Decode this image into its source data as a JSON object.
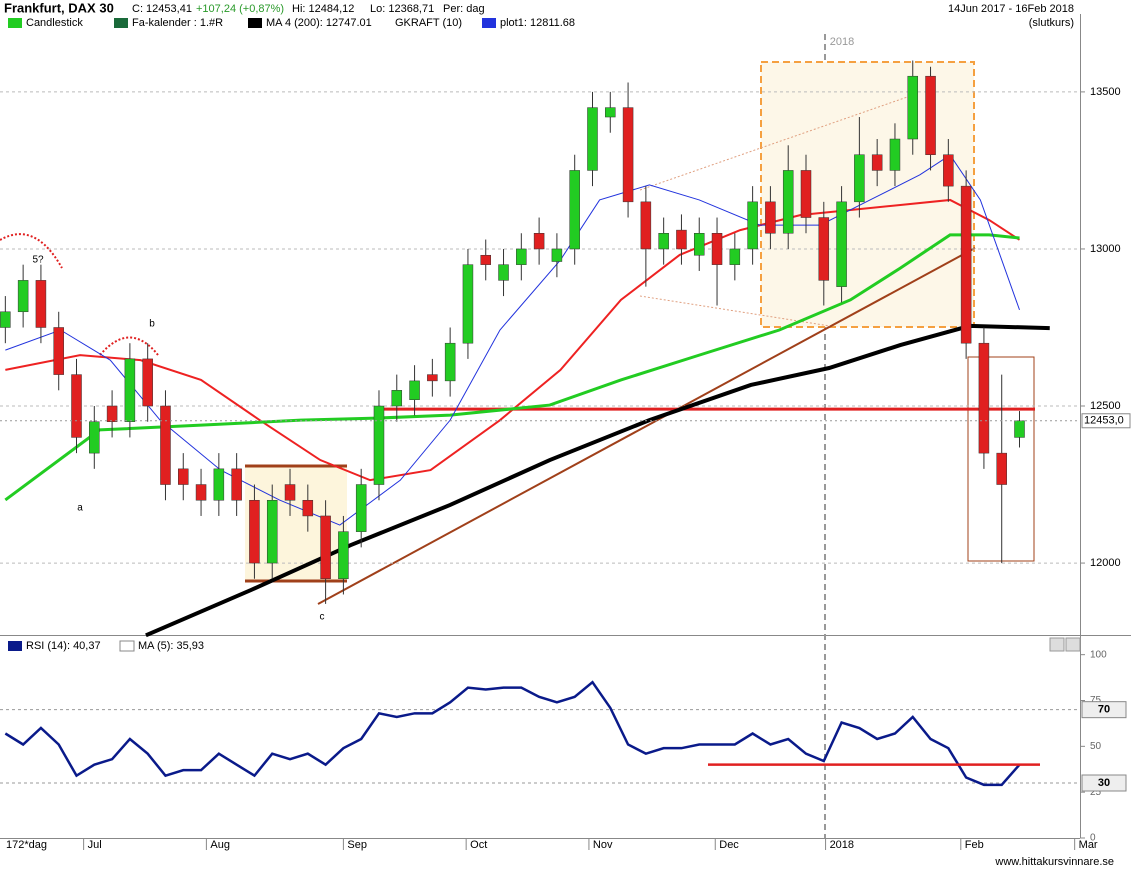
{
  "header": {
    "title": "Frankfurt, DAX 30",
    "close": "C: 12453,41",
    "change": "+107,24 (+0,87%)",
    "high": "Hi: 12484,12",
    "low": "Lo: 12368,71",
    "period": "Per: dag",
    "range": "14Jun 2017 - 16Feb 2018",
    "mode": "(slutkurs)",
    "footer": "www.hittakursvinnare.se",
    "span": "172*dag"
  },
  "chart_data": [
    {
      "type": "candlestick",
      "legend": [
        "Candlestick",
        "Fa-kalender : 1.#R",
        "MA 4 (200): 12747.01",
        "GKRAFT (10)",
        "plot1: 12811.68"
      ],
      "up_color": "#22cc22",
      "down_color": "#e02020",
      "open": [
        12750,
        12800,
        12900,
        12750,
        12600,
        12350,
        12500,
        12450,
        12650,
        12500,
        12300,
        12250,
        12200,
        12300,
        12200,
        12000,
        12250,
        12200,
        12150,
        11950,
        12100,
        12250,
        12500,
        12520,
        12600,
        12580,
        12700,
        12980,
        12900,
        12950,
        13050,
        12960,
        13000,
        13250,
        13420,
        13450,
        13150,
        13000,
        13060,
        12980,
        13050,
        12950,
        13000,
        13150,
        13050,
        13250,
        13100,
        12880,
        13150,
        13300,
        13250,
        13350,
        13550,
        13300,
        13200,
        12700,
        12350,
        12400
      ],
      "high": [
        12850,
        12950,
        12950,
        12800,
        12650,
        12500,
        12550,
        12700,
        12700,
        12550,
        12350,
        12300,
        12350,
        12350,
        12250,
        12250,
        12300,
        12250,
        12200,
        12150,
        12300,
        12550,
        12600,
        12630,
        12650,
        12750,
        13000,
        13030,
        13000,
        13050,
        13100,
        13050,
        13300,
        13500,
        13500,
        13530,
        13200,
        13100,
        13110,
        13100,
        13100,
        13050,
        13200,
        13200,
        13330,
        13300,
        13150,
        13200,
        13420,
        13350,
        13400,
        13600,
        13580,
        13350,
        13250,
        12750,
        12600,
        12484
      ],
      "low": [
        12700,
        12750,
        12700,
        12550,
        12350,
        12300,
        12400,
        12400,
        12450,
        12200,
        12200,
        12150,
        12150,
        12150,
        11950,
        11950,
        12150,
        12100,
        11870,
        11900,
        12050,
        12200,
        12450,
        12470,
        12530,
        12530,
        12650,
        12900,
        12850,
        12900,
        12950,
        12910,
        12950,
        13200,
        13370,
        13100,
        12880,
        12950,
        12950,
        12930,
        12820,
        12900,
        12950,
        13000,
        13000,
        13050,
        12820,
        12830,
        13100,
        13200,
        13200,
        13300,
        13250,
        13150,
        12650,
        12300,
        12000,
        12368
      ],
      "close": [
        12800,
        12900,
        12750,
        12600,
        12400,
        12450,
        12450,
        12650,
        12500,
        12250,
        12250,
        12200,
        12300,
        12200,
        12000,
        12200,
        12200,
        12150,
        11950,
        12100,
        12250,
        12500,
        12550,
        12580,
        12580,
        12700,
        12950,
        12950,
        12950,
        13000,
        13000,
        13000,
        13250,
        13450,
        13450,
        13150,
        13000,
        13050,
        13000,
        13050,
        12950,
        13000,
        13150,
        13050,
        13250,
        13100,
        12900,
        13150,
        13300,
        13250,
        13350,
        13550,
        13300,
        13200,
        12700,
        12350,
        12250,
        12453
      ],
      "lines": [
        {
          "name": "MA 4 (200)",
          "color": "#000000",
          "width": 4,
          "x": [
            7.9,
            13.8,
            19.4,
            25,
            30.6,
            36.2,
            41.9,
            46.3,
            50.3,
            54.2,
            58.7
          ],
          "values": [
            11770,
            11914,
            12057,
            12185,
            12328,
            12455,
            12567,
            12621,
            12694,
            12755,
            12748
          ]
        },
        {
          "name": "red",
          "color": "#ee2222",
          "width": 2,
          "x": [
            0,
            4.2,
            7.6,
            11,
            14.3,
            17.7,
            20.5,
            23.9,
            27.8,
            31.2,
            34.6,
            37.9,
            41.3,
            44.7,
            47.5,
            50.3,
            53.1,
            55.3,
            57
          ],
          "values": [
            12615,
            12662,
            12646,
            12583,
            12455,
            12328,
            12264,
            12296,
            12455,
            12615,
            12838,
            12981,
            13060,
            13108,
            13124,
            13140,
            13156,
            13092,
            13029
          ]
        },
        {
          "name": "green",
          "color": "#22cc22",
          "width": 3,
          "x": [
            0,
            5.3,
            11,
            16.6,
            21.1,
            25,
            30.6,
            34.6,
            39,
            43.5,
            47.5,
            50.3,
            53.1,
            55.3,
            57
          ],
          "values": [
            12201,
            12424,
            12439,
            12455,
            12462,
            12471,
            12503,
            12583,
            12662,
            12742,
            12838,
            12939,
            13045,
            13045,
            13035
          ]
        },
        {
          "name": "plot1",
          "color": "#2233dd",
          "width": 1,
          "x": [
            0,
            3.1,
            5.9,
            8.7,
            12.1,
            15.4,
            18.8,
            22.2,
            25,
            27.8,
            31.2,
            33.4,
            36.2,
            39,
            42.4,
            45.8,
            48.6,
            51.4,
            53.1,
            54.8,
            57
          ],
          "values": [
            12678,
            12742,
            12646,
            12455,
            12296,
            12201,
            12121,
            12264,
            12455,
            12742,
            12965,
            13156,
            13204,
            13156,
            13076,
            13076,
            13156,
            13236,
            13299,
            13156,
            12806
          ]
        }
      ],
      "hline": 12490,
      "ylim": [
        11771,
        13748
      ],
      "yticks": [
        12000,
        12500,
        13000,
        13500
      ],
      "xlim": [
        -0.3,
        60.4
      ],
      "xticks": [
        {
          "value": 4.4,
          "label": "Jul"
        },
        {
          "value": 11.3,
          "label": "Aug"
        },
        {
          "value": 19,
          "label": "Sep"
        },
        {
          "value": 25.9,
          "label": "Oct"
        },
        {
          "value": 32.8,
          "label": "Nov"
        },
        {
          "value": 39.9,
          "label": "Dec"
        },
        {
          "value": 46.1,
          "label": "2018"
        },
        {
          "value": 53.7,
          "label": "Feb"
        },
        {
          "value": 60.1,
          "label": "Mar"
        }
      ],
      "price_marker": {
        "value": 12453,
        "label": "12453,0"
      },
      "annotations": [
        "5?",
        "b",
        "a",
        "c",
        "2018"
      ]
    },
    {
      "type": "line",
      "legend": [
        "RSI (14): 40,37",
        "MA (5): 35,93"
      ],
      "color": "#0a1a8a",
      "values": [
        57,
        51,
        60,
        51,
        34,
        40,
        43,
        54,
        46,
        34,
        37,
        37,
        46,
        40,
        34,
        46,
        43,
        46,
        40,
        49,
        54,
        68,
        66,
        68,
        68,
        74,
        82,
        81,
        82,
        82,
        77,
        74,
        77,
        85,
        71,
        51,
        46,
        49,
        49,
        51,
        51,
        51,
        57,
        51,
        54,
        46,
        42,
        63,
        60,
        54,
        57,
        66,
        54,
        49,
        33,
        29,
        29,
        40
      ],
      "hline": 40,
      "levels": [
        70,
        30
      ],
      "ylim": [
        0,
        108
      ],
      "yticks": [
        0,
        25,
        50,
        75,
        100
      ],
      "xlim": [
        -0.3,
        60.4
      ]
    }
  ]
}
